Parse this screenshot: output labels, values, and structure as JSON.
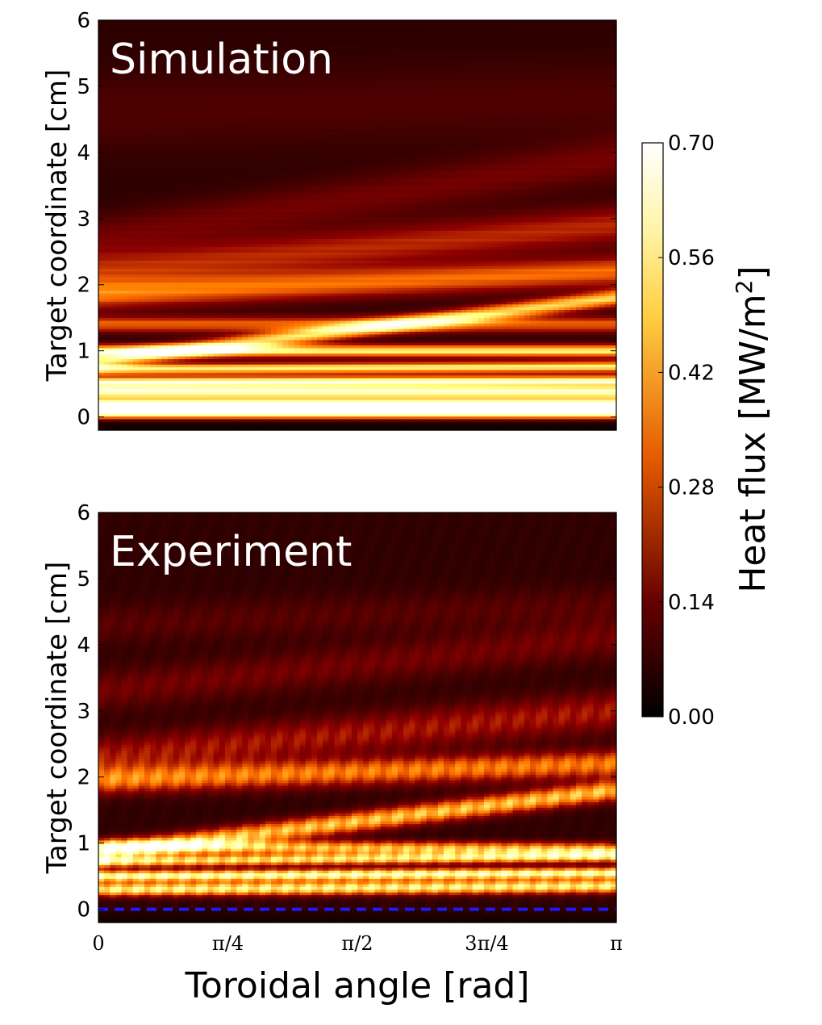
{
  "chart_data": [
    {
      "type": "heatmap",
      "title": "Simulation",
      "xlabel": "",
      "ylabel": "Target coordinate [cm]",
      "xlim": [
        0,
        3.14159
      ],
      "ylim": [
        -0.2,
        6
      ],
      "yticks": [
        0,
        1,
        2,
        3,
        4,
        5,
        6
      ],
      "ytick_labels": [
        "0",
        "1",
        "2",
        "3",
        "4",
        "5",
        "6"
      ],
      "bands": [
        {
          "y_start": 0.06,
          "y_end": 0.06,
          "width": 0.09,
          "value": 0.65
        },
        {
          "y_start": 0.2,
          "y_end": 0.2,
          "width": 0.09,
          "value": 0.68
        },
        {
          "y_start": 0.38,
          "y_end": 0.38,
          "width": 0.08,
          "value": 0.62
        },
        {
          "y_start": 0.52,
          "y_end": 0.54,
          "width": 0.08,
          "value": 0.62
        },
        {
          "y_start": 0.72,
          "y_end": 0.76,
          "width": 0.08,
          "value": 0.5
        },
        {
          "y_start": 1.0,
          "y_end": 1.0,
          "width": 0.09,
          "value": 0.5
        },
        {
          "y_start": 1.4,
          "y_end": 1.4,
          "width": 0.12,
          "value": 0.28
        },
        {
          "y_start": 0.85,
          "y_end": 1.8,
          "width": 0.12,
          "value": 0.45
        },
        {
          "y_start": 1.85,
          "y_end": 2.2,
          "width": 0.22,
          "value": 0.3
        },
        {
          "y_start": 2.2,
          "y_end": 2.9,
          "width": 0.3,
          "value": 0.2
        },
        {
          "y_start": 2.7,
          "y_end": 3.9,
          "width": 0.35,
          "value": 0.1
        },
        {
          "y_start": 4.6,
          "y_end": 4.8,
          "width": 0.6,
          "value": 0.05
        }
      ],
      "floor_value": 0.04,
      "edge_bottom": {
        "y": -0.1,
        "value": 0.02
      }
    },
    {
      "type": "heatmap",
      "title": "Experiment",
      "xlabel": "Toroidal angle [rad]",
      "ylabel": "Target coordinate [cm]",
      "xlim": [
        0,
        3.14159
      ],
      "ylim": [
        -0.2,
        6
      ],
      "xticks": [
        0,
        0.7854,
        1.5708,
        2.3562,
        3.14159
      ],
      "xtick_labels": [
        "0",
        "π/4",
        "π/2",
        "3π/4",
        "π"
      ],
      "yticks": [
        0,
        1,
        2,
        3,
        4,
        5,
        6
      ],
      "ytick_labels": [
        "0",
        "1",
        "2",
        "3",
        "4",
        "5",
        "6"
      ],
      "bands": [
        {
          "y_start": 0.3,
          "y_end": 0.35,
          "width": 0.1,
          "value": 0.55
        },
        {
          "y_start": 0.5,
          "y_end": 0.55,
          "width": 0.08,
          "value": 0.62
        },
        {
          "y_start": 0.72,
          "y_end": 0.8,
          "width": 0.08,
          "value": 0.5
        },
        {
          "y_start": 0.95,
          "y_end": 0.9,
          "width": 0.1,
          "value": 0.45
        },
        {
          "y_start": 0.85,
          "y_end": 1.8,
          "width": 0.15,
          "value": 0.45
        },
        {
          "y_start": 1.95,
          "y_end": 2.2,
          "width": 0.2,
          "value": 0.34
        },
        {
          "y_start": 2.3,
          "y_end": 3.0,
          "width": 0.3,
          "value": 0.18
        },
        {
          "y_start": 3.3,
          "y_end": 4.1,
          "width": 0.3,
          "value": 0.1
        },
        {
          "y_start": 4.3,
          "y_end": 4.6,
          "width": 0.3,
          "value": 0.06
        }
      ],
      "floor_value": 0.05,
      "reference_line": {
        "y": 0,
        "color": "#1a1aff",
        "style": "dashed"
      }
    }
  ],
  "colorbar": {
    "label": "Heat flux [MW/m²]",
    "label_main": "Heat flux [MW/m",
    "label_sup": "2",
    "label_end": "]",
    "colormap": "afmhot",
    "vmin": 0.0,
    "vmax": 0.7,
    "ticks": [
      0.0,
      0.14,
      0.28,
      0.42,
      0.56,
      0.7
    ],
    "tick_labels": [
      "0.00",
      "0.14",
      "0.28",
      "0.42",
      "0.56",
      "0.70"
    ]
  }
}
